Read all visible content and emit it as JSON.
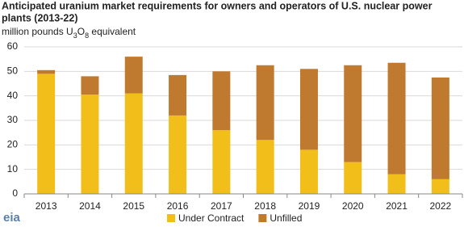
{
  "chart_data": {
    "type": "stacked_bar",
    "title": [
      "Anticipated uranium market requirements for owners and operators  of U.S. nuclear power",
      "plants (2013-22)"
    ],
    "subtitle": "million pounds U3O8 equivalent",
    "categories": [
      "2013",
      "2014",
      "2015",
      "2016",
      "2017",
      "2018",
      "2019",
      "2020",
      "2021",
      "2022"
    ],
    "series": [
      {
        "name": "Under Contract",
        "color": "#f2be1a",
        "values": [
          49,
          40.5,
          41,
          32,
          26,
          22,
          18,
          13,
          8,
          6
        ]
      },
      {
        "name": "Unfilled",
        "color": "#bf7a30",
        "values": [
          1.5,
          7.5,
          15,
          16.5,
          24,
          30.5,
          33,
          39.5,
          45.5,
          41.5
        ]
      }
    ],
    "ylim": [
      0,
      60
    ],
    "yticks": [
      0,
      10,
      20,
      30,
      40,
      50,
      60
    ],
    "grid": true,
    "legend": "bottom",
    "source_logo": "eia"
  }
}
